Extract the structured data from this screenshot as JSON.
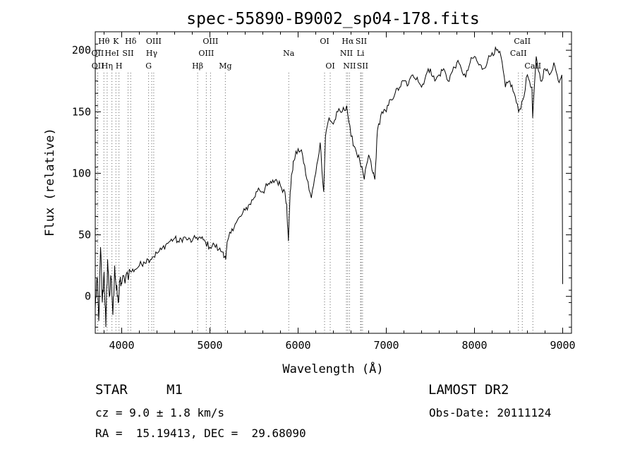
{
  "chart_data": {
    "type": "line",
    "title": "spec-55890-B9002_sp04-178.fits",
    "xlabel": "Wavelength (Å)",
    "ylabel": "Flux (relative)",
    "xlim": [
      3700,
      9100
    ],
    "ylim": [
      -30,
      215
    ],
    "xticks": [
      4000,
      5000,
      6000,
      7000,
      8000,
      9000
    ],
    "yticks": [
      0,
      50,
      100,
      150,
      200
    ],
    "grid": false,
    "series": [
      {
        "name": "flux",
        "x": [
          3700,
          3720,
          3740,
          3760,
          3780,
          3800,
          3820,
          3840,
          3860,
          3880,
          3900,
          3920,
          3940,
          3960,
          3980,
          4000,
          4050,
          4100,
          4150,
          4200,
          4250,
          4300,
          4350,
          4400,
          4450,
          4500,
          4550,
          4600,
          4650,
          4700,
          4750,
          4800,
          4850,
          4900,
          4950,
          5000,
          5050,
          5100,
          5150,
          5180,
          5200,
          5250,
          5300,
          5350,
          5400,
          5450,
          5500,
          5550,
          5600,
          5650,
          5700,
          5750,
          5800,
          5850,
          5870,
          5890,
          5910,
          5930,
          5950,
          6000,
          6050,
          6100,
          6150,
          6200,
          6250,
          6290,
          6310,
          6350,
          6400,
          6450,
          6500,
          6550,
          6600,
          6650,
          6700,
          6750,
          6800,
          6850,
          6870,
          6900,
          6950,
          7000,
          7050,
          7100,
          7150,
          7200,
          7250,
          7300,
          7350,
          7400,
          7450,
          7500,
          7550,
          7600,
          7650,
          7700,
          7750,
          7800,
          7850,
          7900,
          7950,
          8000,
          8050,
          8100,
          8150,
          8200,
          8250,
          8300,
          8350,
          8400,
          8450,
          8500,
          8550,
          8600,
          8650,
          8660,
          8700,
          8750,
          8800,
          8850,
          8900,
          8950,
          8990,
          9000
        ],
        "values": [
          -10,
          15,
          -20,
          40,
          -5,
          20,
          -25,
          30,
          0,
          15,
          -15,
          25,
          5,
          -5,
          12,
          10,
          18,
          20,
          22,
          25,
          28,
          30,
          32,
          35,
          38,
          42,
          45,
          47,
          44,
          48,
          46,
          45,
          48,
          47,
          44,
          40,
          42,
          38,
          36,
          30,
          45,
          55,
          60,
          65,
          70,
          75,
          80,
          88,
          85,
          90,
          92,
          95,
          90,
          85,
          75,
          45,
          85,
          100,
          110,
          120,
          115,
          95,
          80,
          100,
          125,
          85,
          130,
          145,
          140,
          150,
          150,
          155,
          130,
          120,
          110,
          95,
          115,
          100,
          95,
          135,
          150,
          150,
          160,
          165,
          170,
          175,
          172,
          180,
          178,
          170,
          180,
          185,
          175,
          180,
          185,
          175,
          183,
          190,
          185,
          178,
          190,
          195,
          188,
          185,
          192,
          198,
          200,
          195,
          170,
          175,
          165,
          150,
          160,
          180,
          170,
          145,
          195,
          175,
          185,
          180,
          190,
          175,
          180,
          10
        ]
      }
    ],
    "lines": [
      {
        "label": "Hθ",
        "wave": 3798,
        "row": 1
      },
      {
        "label": "OII",
        "wave": 3727,
        "row": 2
      },
      {
        "label": "OII",
        "wave": 3729,
        "row": 3
      },
      {
        "label": "K",
        "wave": 3934,
        "row": 1
      },
      {
        "label": "Hη",
        "wave": 3835,
        "row": 3
      },
      {
        "label": "HeI",
        "wave": 3889,
        "row": 2
      },
      {
        "label": "H",
        "wave": 3969,
        "row": 3
      },
      {
        "label": "SII",
        "wave": 4072,
        "row": 2
      },
      {
        "label": "Hδ",
        "wave": 4102,
        "row": 1
      },
      {
        "label": "OIII",
        "wave": 4363,
        "row": 1
      },
      {
        "label": "Hγ",
        "wave": 4340,
        "row": 2
      },
      {
        "label": "G",
        "wave": 4305,
        "row": 3
      },
      {
        "label": "Hβ",
        "wave": 4861,
        "row": 3
      },
      {
        "label": "OIII",
        "wave": 5007,
        "row": 1
      },
      {
        "label": "OIII",
        "wave": 4959,
        "row": 2
      },
      {
        "label": "Mg",
        "wave": 5175,
        "row": 3
      },
      {
        "label": "Na",
        "wave": 5894,
        "row": 2
      },
      {
        "label": "OI",
        "wave": 6300,
        "row": 1
      },
      {
        "label": "OI",
        "wave": 6364,
        "row": 3
      },
      {
        "label": "Hα",
        "wave": 6563,
        "row": 1
      },
      {
        "label": "NII",
        "wave": 6548,
        "row": 2
      },
      {
        "label": "NII",
        "wave": 6583,
        "row": 3
      },
      {
        "label": "SII",
        "wave": 6716,
        "row": 1
      },
      {
        "label": "Li",
        "wave": 6708,
        "row": 2
      },
      {
        "label": "SII",
        "wave": 6731,
        "row": 3
      },
      {
        "label": "CaII",
        "wave": 8542,
        "row": 1
      },
      {
        "label": "CaII",
        "wave": 8498,
        "row": 2
      },
      {
        "label": "CaII",
        "wave": 8662,
        "row": 3
      }
    ]
  },
  "info": {
    "object_class": "STAR",
    "subclass": "M1",
    "survey": "LAMOST DR2",
    "cz": "cz = 9.0 ± 1.8 km/s",
    "obs_date": "Obs-Date: 20111124",
    "coords": "RA =  15.19413, DEC =  29.68090"
  }
}
